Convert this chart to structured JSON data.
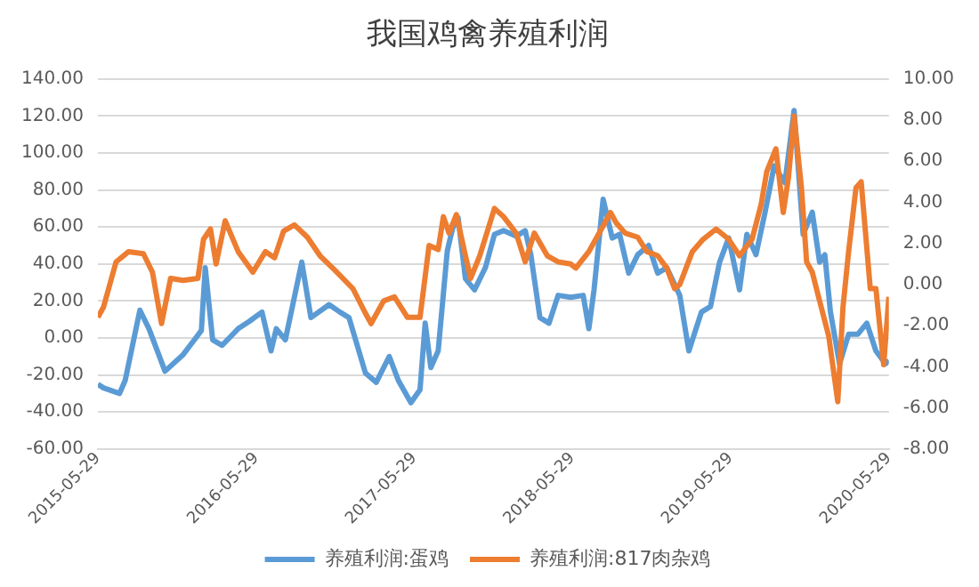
{
  "chart_data": {
    "type": "line",
    "title": "我国鸡禽养殖利润",
    "xlim": [
      "2015-05-29",
      "2020-05-29"
    ],
    "xticks": [
      {
        "value": "2015-05-29",
        "label": "2015-05-29"
      },
      {
        "value": "2016-05-29",
        "label": "2016-05-29"
      },
      {
        "value": "2017-05-29",
        "label": "2017-05-29"
      },
      {
        "value": "2018-05-29",
        "label": "2018-05-29"
      },
      {
        "value": "2019-05-29",
        "label": "2019-05-29"
      },
      {
        "value": "2020-05-29",
        "label": "2020-05-29"
      }
    ],
    "ylim": [
      -60,
      140
    ],
    "yticks": [
      {
        "value": -60,
        "label": "-60.00"
      },
      {
        "value": -40,
        "label": "-40.00"
      },
      {
        "value": -20,
        "label": "-20.00"
      },
      {
        "value": 0,
        "label": "0.00"
      },
      {
        "value": 20,
        "label": "20.00"
      },
      {
        "value": 40,
        "label": "40.00"
      },
      {
        "value": 60,
        "label": "60.00"
      },
      {
        "value": 80,
        "label": "80.00"
      },
      {
        "value": 100,
        "label": "100.00"
      },
      {
        "value": 120,
        "label": "120.00"
      },
      {
        "value": 140,
        "label": "140.00"
      }
    ],
    "y2lim": [
      -8,
      10
    ],
    "y2ticks": [
      {
        "value": -8,
        "label": "-8.00"
      },
      {
        "value": -6,
        "label": "-6.00"
      },
      {
        "value": -4,
        "label": "-4.00"
      },
      {
        "value": -2,
        "label": "-2.00"
      },
      {
        "value": 0,
        "label": "0.00"
      },
      {
        "value": 2,
        "label": "2.00"
      },
      {
        "value": 4,
        "label": "4.00"
      },
      {
        "value": 6,
        "label": "6.00"
      },
      {
        "value": 8,
        "label": "8.00"
      },
      {
        "value": 10,
        "label": "10.00"
      }
    ],
    "grid": "y",
    "legend": "bottom",
    "marker": "none",
    "line_style": "solid",
    "series": [
      {
        "name": "养殖利润:蛋鸡",
        "color": "#5b9bd5",
        "x": [
          "2015-05-29",
          "2015-06-11",
          "2015-07-18",
          "2015-07-31",
          "2015-09-03",
          "2015-09-24",
          "2015-10-31",
          "2015-12-12",
          "2016-01-07",
          "2016-01-23",
          "2016-02-01",
          "2016-02-18",
          "2016-03-11",
          "2016-04-17",
          "2016-05-13",
          "2016-06-11",
          "2016-07-02",
          "2016-07-14",
          "2016-08-04",
          "2016-09-11",
          "2016-10-02",
          "2016-11-13",
          "2016-12-08",
          "2016-12-29",
          "2017-02-05",
          "2017-03-02",
          "2017-04-01",
          "2017-04-22",
          "2017-05-21",
          "2017-06-11",
          "2017-06-23",
          "2017-07-06",
          "2017-07-23",
          "2017-08-13",
          "2017-08-25",
          "2017-09-07",
          "2017-09-24",
          "2017-10-15",
          "2017-11-09",
          "2017-11-30",
          "2017-12-21",
          "2018-01-19",
          "2018-02-09",
          "2018-02-22",
          "2018-03-15",
          "2018-04-05",
          "2018-04-26",
          "2018-05-25",
          "2018-06-23",
          "2018-07-06",
          "2018-07-18",
          "2018-08-08",
          "2018-08-29",
          "2018-09-15",
          "2018-10-06",
          "2018-10-27",
          "2018-11-21",
          "2018-12-12",
          "2019-01-02",
          "2019-02-01",
          "2019-02-22",
          "2019-03-23",
          "2019-04-13",
          "2019-05-04",
          "2019-05-25",
          "2019-06-19",
          "2019-07-06",
          "2019-07-27",
          "2019-08-17",
          "2019-09-07",
          "2019-10-02",
          "2019-10-23",
          "2019-11-13",
          "2019-12-04",
          "2019-12-21",
          "2020-01-02",
          "2020-01-15",
          "2020-02-05",
          "2020-02-26",
          "2020-03-18",
          "2020-04-08",
          "2020-04-29",
          "2020-05-21",
          "2020-05-29"
        ],
        "values": [
          -25,
          -27,
          -30,
          -23,
          15,
          5,
          -18,
          -9,
          -1,
          4,
          38,
          -1,
          -4,
          5,
          9,
          14,
          -7,
          5,
          -1,
          41,
          11,
          18,
          14,
          11,
          -19,
          -24,
          -10,
          -23,
          -35,
          -28,
          8,
          -16,
          -7,
          47,
          59,
          65,
          32,
          26,
          38,
          56,
          58,
          55,
          58,
          45,
          11,
          8,
          23,
          22,
          23,
          5,
          26,
          75,
          54,
          56,
          35,
          45,
          50,
          35,
          38,
          23,
          -7,
          14,
          17,
          41,
          54,
          26,
          56,
          45,
          68,
          93,
          84,
          123,
          56,
          68,
          41,
          45,
          14,
          -14,
          2,
          2,
          8,
          -7,
          -14,
          -12
        ]
      },
      {
        "name": "养殖利润:817肉杂鸡",
        "color": "#ed7d31",
        "axis": "y2",
        "x": [
          "2015-05-29",
          "2015-06-11",
          "2015-07-10",
          "2015-08-08",
          "2015-09-11",
          "2015-10-02",
          "2015-10-23",
          "2015-11-13",
          "2015-12-12",
          "2016-01-15",
          "2016-01-28",
          "2016-02-13",
          "2016-02-26",
          "2016-03-18",
          "2016-04-17",
          "2016-05-21",
          "2016-06-19",
          "2016-07-10",
          "2016-07-31",
          "2016-08-25",
          "2016-09-24",
          "2016-10-23",
          "2016-11-26",
          "2017-01-07",
          "2017-02-05",
          "2017-02-18",
          "2017-03-19",
          "2017-04-13",
          "2017-05-13",
          "2017-06-11",
          "2017-07-02",
          "2017-07-23",
          "2017-08-04",
          "2017-08-17",
          "2017-09-03",
          "2017-09-24",
          "2017-10-06",
          "2017-10-27",
          "2017-11-30",
          "2017-12-21",
          "2018-01-19",
          "2018-02-09",
          "2018-03-02",
          "2018-04-01",
          "2018-04-26",
          "2018-05-25",
          "2018-06-06",
          "2018-07-06",
          "2018-08-04",
          "2018-08-25",
          "2018-09-07",
          "2018-09-28",
          "2018-10-27",
          "2018-11-17",
          "2018-12-12",
          "2019-01-02",
          "2019-01-20",
          "2019-02-01",
          "2019-03-02",
          "2019-03-27",
          "2019-04-26",
          "2019-05-25",
          "2019-06-19",
          "2019-07-18",
          "2019-08-08",
          "2019-08-21",
          "2019-09-11",
          "2019-09-28",
          "2019-10-10",
          "2019-10-23",
          "2019-11-09",
          "2019-11-21",
          "2019-12-04",
          "2019-12-21",
          "2020-01-11",
          "2020-02-01",
          "2020-02-13",
          "2020-02-26",
          "2020-03-14",
          "2020-03-26",
          "2020-04-16",
          "2020-04-29",
          "2020-05-17",
          "2020-05-29"
        ],
        "values": [
          -1.6,
          -1.1,
          1.1,
          1.6,
          1.5,
          0.6,
          -1.9,
          0.3,
          0.2,
          0.3,
          2.2,
          2.7,
          1.0,
          3.1,
          1.6,
          0.6,
          1.6,
          1.3,
          2.6,
          2.9,
          2.3,
          1.4,
          0.7,
          -0.2,
          -1.4,
          -1.9,
          -0.8,
          -0.6,
          -1.6,
          -1.6,
          1.9,
          1.7,
          3.3,
          2.5,
          3.4,
          1.4,
          0.3,
          1.4,
          3.7,
          3.3,
          2.5,
          1.1,
          2.5,
          1.4,
          1.1,
          1.0,
          0.8,
          1.6,
          2.7,
          3.5,
          3.0,
          2.5,
          2.3,
          1.6,
          1.4,
          0.8,
          -0.2,
          0.0,
          1.6,
          2.2,
          2.7,
          2.2,
          1.4,
          2.2,
          3.9,
          5.5,
          6.6,
          3.5,
          5.2,
          8.2,
          4.7,
          1.1,
          0.6,
          -0.8,
          -2.5,
          -5.7,
          -1.1,
          1.6,
          4.7,
          5.0,
          -0.2,
          -0.2,
          -3.9,
          -0.6
        ]
      }
    ]
  }
}
